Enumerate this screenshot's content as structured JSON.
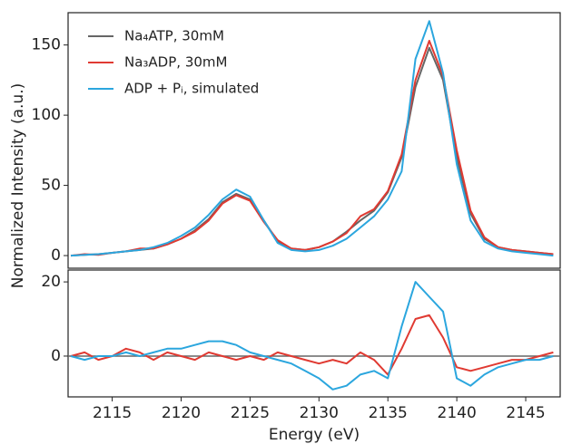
{
  "chart_data": [
    {
      "type": "line",
      "ylabel": "Normalized Intensity (a.u.)",
      "x": [
        2112,
        2113,
        2114,
        2115,
        2116,
        2117,
        2118,
        2119,
        2120,
        2121,
        2122,
        2123,
        2124,
        2125,
        2126,
        2127,
        2128,
        2129,
        2130,
        2131,
        2132,
        2133,
        2134,
        2135,
        2136,
        2137,
        2138,
        2139,
        2140,
        2141,
        2142,
        2143,
        2144,
        2145,
        2146,
        2147
      ],
      "xlim": [
        2111.8,
        2147.5
      ],
      "ylim": [
        -9,
        173
      ],
      "yticks": [
        0,
        50,
        100,
        150
      ],
      "legend": "upper left",
      "series": [
        {
          "name": "Na₄ATP, 30mM",
          "color": "#666666",
          "values": [
            0,
            0.5,
            1,
            2,
            3,
            4,
            5,
            8,
            12,
            18,
            26,
            38,
            44,
            40,
            25,
            10,
            5,
            4,
            6,
            10,
            17,
            25,
            32,
            45,
            70,
            120,
            148,
            125,
            70,
            30,
            12,
            6,
            4,
            3,
            2,
            1
          ]
        },
        {
          "name": "Na₃ADP, 30mM",
          "color": "#e03a32",
          "values": [
            0,
            1,
            0.5,
            2,
            3,
            5,
            5,
            8,
            12,
            17,
            25,
            37,
            43,
            39,
            24,
            11,
            5,
            4,
            6,
            10,
            16,
            28,
            33,
            46,
            72,
            125,
            153,
            128,
            75,
            32,
            13,
            6,
            4,
            3,
            2,
            1
          ]
        },
        {
          "name": "ADP + Pᵢ, simulated",
          "color": "#2ba6de",
          "values": [
            0,
            0.5,
            1,
            2,
            3,
            4,
            6,
            9,
            14,
            20,
            29,
            40,
            47,
            42,
            25,
            9,
            4,
            3,
            4,
            7,
            12,
            20,
            28,
            40,
            60,
            140,
            167,
            130,
            65,
            25,
            10,
            5,
            3,
            2,
            1,
            0
          ]
        }
      ]
    },
    {
      "type": "line",
      "xlabel": "Energy (eV)",
      "x": [
        2112,
        2113,
        2114,
        2115,
        2116,
        2117,
        2118,
        2119,
        2120,
        2121,
        2122,
        2123,
        2124,
        2125,
        2126,
        2127,
        2128,
        2129,
        2130,
        2131,
        2132,
        2133,
        2134,
        2135,
        2136,
        2137,
        2138,
        2139,
        2140,
        2141,
        2142,
        2143,
        2144,
        2145,
        2146,
        2147
      ],
      "xlim": [
        2111.8,
        2147.5
      ],
      "xticks": [
        2115,
        2120,
        2125,
        2130,
        2135,
        2140,
        2145
      ],
      "ylim": [
        -11,
        23.2
      ],
      "yticks": [
        0,
        20
      ],
      "reference_line": 0,
      "series": [
        {
          "color": "#e03a32",
          "values": [
            0,
            1,
            -1,
            0,
            2,
            1,
            -1,
            1,
            0,
            -1,
            1,
            0,
            -1,
            0,
            -1,
            1,
            0,
            -1,
            -2,
            -1,
            -2,
            1,
            -1,
            -5,
            2,
            10,
            11,
            5,
            -3,
            -4,
            -3,
            -2,
            -1,
            -1,
            0,
            1
          ]
        },
        {
          "color": "#2ba6de",
          "values": [
            0,
            -1,
            0,
            0,
            1,
            0,
            1,
            2,
            2,
            3,
            4,
            4,
            3,
            1,
            0,
            -1,
            -2,
            -4,
            -6,
            -9,
            -8,
            -5,
            -4,
            -6,
            8,
            20,
            16,
            12,
            -6,
            -8,
            -5,
            -3,
            -2,
            -1,
            -1,
            0
          ]
        }
      ]
    }
  ]
}
